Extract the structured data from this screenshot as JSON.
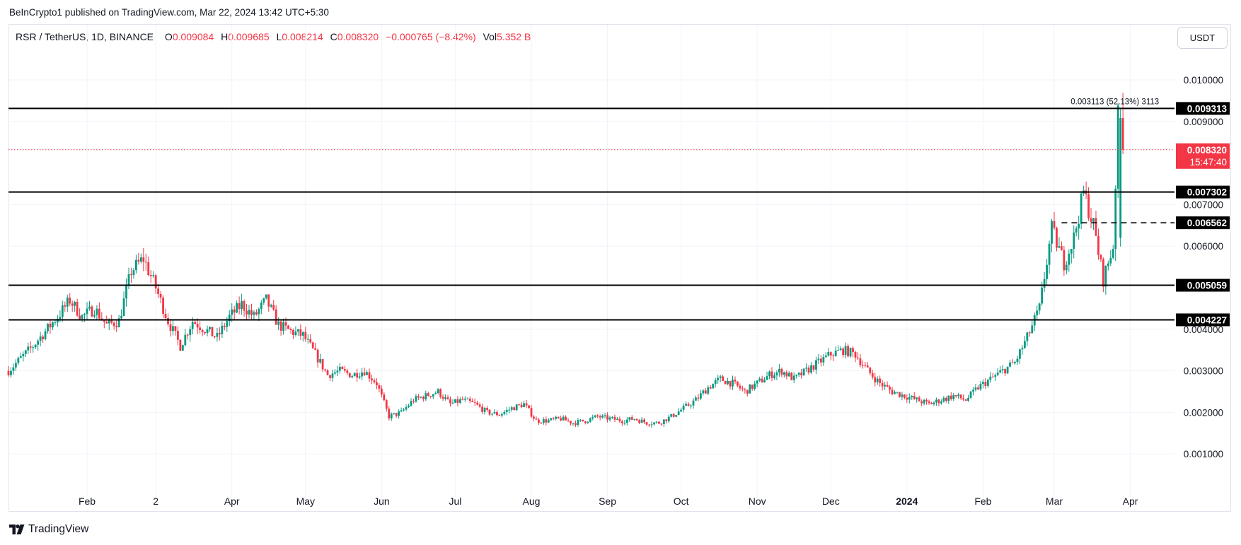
{
  "header": {
    "published": "BeInCrypto1 published on TradingView.com, Mar 22, 2024 13:42 UTC+5:30"
  },
  "legend": {
    "symbol": "RSR / TetherUS, 1D, BINANCE",
    "o_label": "O",
    "o_value": "0.009084",
    "h_label": "H",
    "h_value": "0.009685",
    "l_label": "L",
    "l_value": "0.008214",
    "c_label": "C",
    "c_value": "0.008320",
    "change": "−0.000765 (−8.42%)",
    "vol_label": "Vol",
    "vol_value": "5.352 B"
  },
  "toolbar": {
    "currency": "USDT"
  },
  "footer": {
    "logo_text": "TradingView",
    "logo_icon": "tradingview-logo-icon"
  },
  "colors": {
    "up": "#089981",
    "down": "#f23645",
    "line": "#000000",
    "grid": "#f0f3fa",
    "text": "#131722"
  },
  "chart_data": {
    "type": "candlestick",
    "ylim": [
      0.0,
      0.0107
    ],
    "y_ticks": [
      0.001,
      0.002,
      0.003,
      0.004,
      0.006,
      0.007,
      0.009,
      0.01
    ],
    "y_tick_labels": [
      "0.001000",
      "0.002000",
      "0.003000",
      "0.004000",
      "0.006000",
      "0.007000",
      "0.009000",
      "0.010000"
    ],
    "x_labels": [
      {
        "label": "Feb",
        "day": 32
      },
      {
        "label": "2",
        "day": 60
      },
      {
        "label": "Apr",
        "day": 91
      },
      {
        "label": "May",
        "day": 121
      },
      {
        "label": "Jun",
        "day": 152
      },
      {
        "label": "Jul",
        "day": 182
      },
      {
        "label": "Aug",
        "day": 213
      },
      {
        "label": "Sep",
        "day": 244
      },
      {
        "label": "Oct",
        "day": 274
      },
      {
        "label": "Nov",
        "day": 305
      },
      {
        "label": "Dec",
        "day": 335
      },
      {
        "label": "2024",
        "day": 366,
        "bold": true
      },
      {
        "label": "Feb",
        "day": 397
      },
      {
        "label": "Mar",
        "day": 426
      },
      {
        "label": "Apr",
        "day": 457
      }
    ],
    "x_domain_days": [
      0,
      475
    ],
    "price_path": [
      [
        0,
        0.003
      ],
      [
        10,
        0.0036
      ],
      [
        20,
        0.0043
      ],
      [
        25,
        0.0047
      ],
      [
        30,
        0.0043
      ],
      [
        35,
        0.0045
      ],
      [
        40,
        0.0041
      ],
      [
        45,
        0.0042
      ],
      [
        50,
        0.0054
      ],
      [
        55,
        0.0057
      ],
      [
        60,
        0.005
      ],
      [
        65,
        0.0042
      ],
      [
        70,
        0.0036
      ],
      [
        75,
        0.0042
      ],
      [
        80,
        0.004
      ],
      [
        85,
        0.0038
      ],
      [
        90,
        0.0043
      ],
      [
        95,
        0.0046
      ],
      [
        100,
        0.0043
      ],
      [
        105,
        0.0047
      ],
      [
        110,
        0.0041
      ],
      [
        115,
        0.00395
      ],
      [
        120,
        0.00385
      ],
      [
        125,
        0.0034
      ],
      [
        130,
        0.0029
      ],
      [
        135,
        0.003
      ],
      [
        140,
        0.0029
      ],
      [
        145,
        0.003
      ],
      [
        150,
        0.0027
      ],
      [
        155,
        0.0019
      ],
      [
        160,
        0.002
      ],
      [
        165,
        0.0023
      ],
      [
        170,
        0.0024
      ],
      [
        175,
        0.0025
      ],
      [
        180,
        0.0022
      ],
      [
        185,
        0.0023
      ],
      [
        190,
        0.0022
      ],
      [
        195,
        0.002
      ],
      [
        200,
        0.00195
      ],
      [
        205,
        0.0021
      ],
      [
        210,
        0.0022
      ],
      [
        215,
        0.0018
      ],
      [
        220,
        0.0018
      ],
      [
        225,
        0.00185
      ],
      [
        230,
        0.00175
      ],
      [
        235,
        0.0018
      ],
      [
        240,
        0.0019
      ],
      [
        245,
        0.00185
      ],
      [
        250,
        0.0018
      ],
      [
        255,
        0.00185
      ],
      [
        260,
        0.00175
      ],
      [
        265,
        0.00175
      ],
      [
        270,
        0.0019
      ],
      [
        275,
        0.0021
      ],
      [
        280,
        0.0023
      ],
      [
        285,
        0.0026
      ],
      [
        290,
        0.0028
      ],
      [
        295,
        0.0027
      ],
      [
        300,
        0.0025
      ],
      [
        305,
        0.0027
      ],
      [
        310,
        0.0029
      ],
      [
        315,
        0.003
      ],
      [
        320,
        0.0028
      ],
      [
        325,
        0.003
      ],
      [
        330,
        0.0032
      ],
      [
        335,
        0.0034
      ],
      [
        340,
        0.0035
      ],
      [
        345,
        0.0034
      ],
      [
        350,
        0.003
      ],
      [
        355,
        0.0027
      ],
      [
        360,
        0.0025
      ],
      [
        365,
        0.0024
      ],
      [
        370,
        0.0023
      ],
      [
        375,
        0.0022
      ],
      [
        380,
        0.0023
      ],
      [
        385,
        0.0024
      ],
      [
        390,
        0.0023
      ],
      [
        395,
        0.0026
      ],
      [
        400,
        0.0028
      ],
      [
        405,
        0.003
      ],
      [
        410,
        0.0032
      ],
      [
        415,
        0.0038
      ],
      [
        420,
        0.0045
      ],
      [
        425,
        0.0064
      ],
      [
        430,
        0.0056
      ],
      [
        434,
        0.0062
      ],
      [
        438,
        0.0073
      ],
      [
        442,
        0.0065
      ],
      [
        446,
        0.0052
      ],
      [
        450,
        0.006
      ],
      [
        452,
        0.00908
      ],
      [
        454,
        0.00832
      ]
    ],
    "levels": [
      {
        "value": 0.009313,
        "label": "0.009313"
      },
      {
        "value": 0.007302,
        "label": "0.007302"
      },
      {
        "value": 0.005059,
        "label": "0.005059"
      },
      {
        "value": 0.004227,
        "label": "0.004227"
      }
    ],
    "dashed_level": {
      "value": 0.006562,
      "label": "0.006562",
      "from_day": 429
    },
    "current_price": {
      "value": 0.00832,
      "label": "0.008320",
      "countdown": "15:47:40"
    },
    "measure": {
      "text": "0.003113 (52.13%) 3113",
      "day": 451,
      "value": 0.00945
    }
  }
}
